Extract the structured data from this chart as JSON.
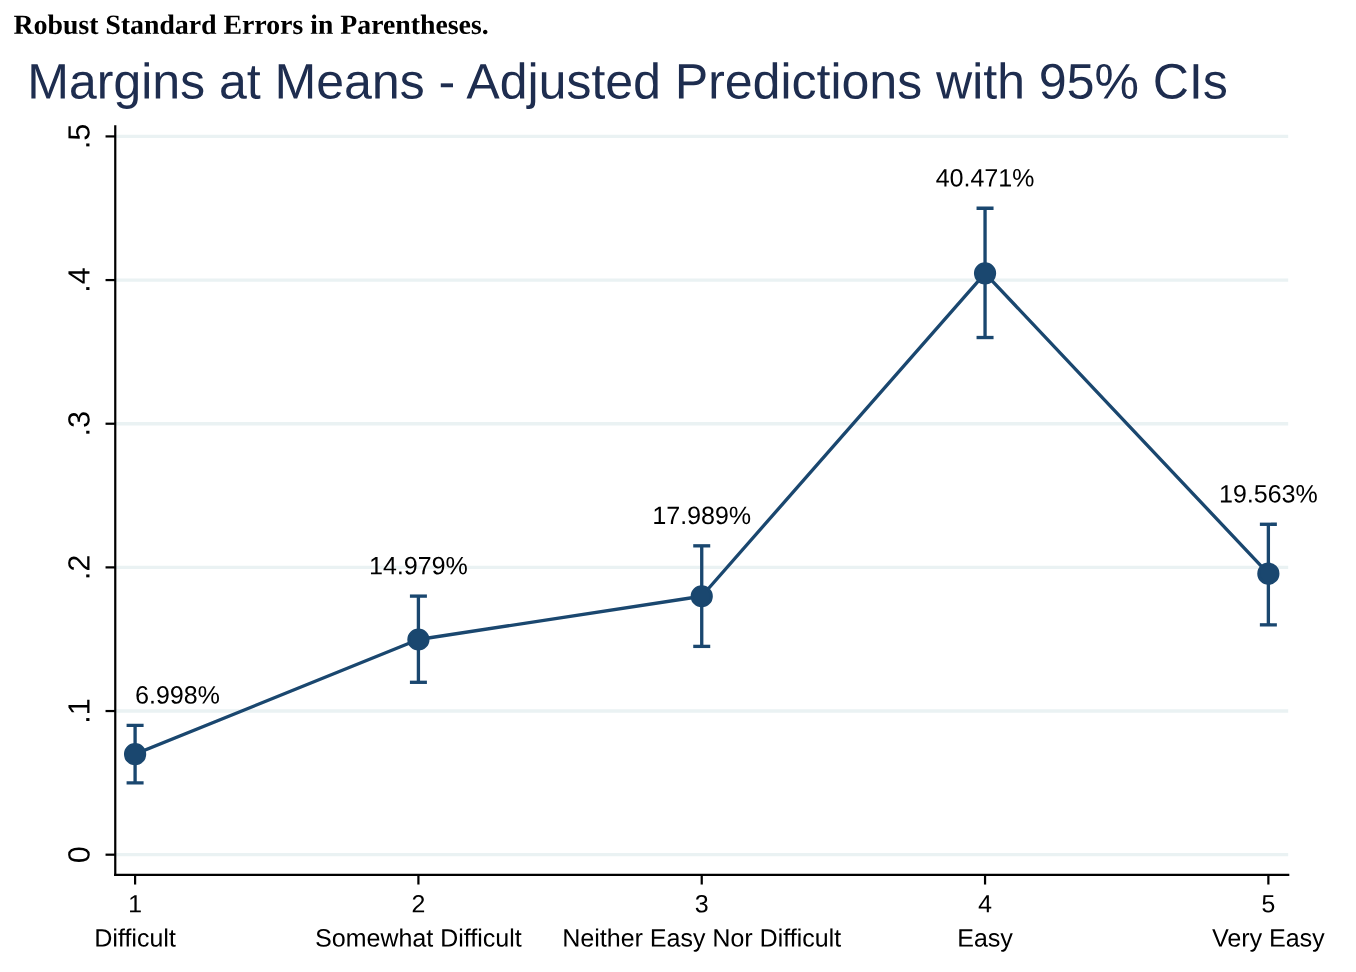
{
  "chart_data": {
    "type": "line",
    "title": "Margins at Means - Adjusted Predictions with 95% CIs",
    "annotations": [
      "Robust Standard Errors in Parentheses."
    ],
    "x": [
      1,
      2,
      3,
      4,
      5
    ],
    "series": [
      {
        "color": "#1a476f",
        "values": [
          0.06998,
          0.14979,
          0.17989,
          0.40471,
          0.19563
        ],
        "errors": [
          [
            0.05,
            0.09
          ],
          [
            0.12,
            0.18
          ],
          [
            0.145,
            0.215
          ],
          [
            0.36,
            0.45
          ],
          [
            0.16,
            0.23
          ]
        ],
        "value_labels": [
          "6.998%",
          "14.979%",
          "17.989%",
          "40.471%",
          "19.563%"
        ]
      }
    ],
    "xlim": [
      0.93,
      5.07
    ],
    "ylim": [
      -0.014,
      0.507
    ],
    "xticks": [
      {
        "value": 1,
        "label": "1\nDifficult"
      },
      {
        "value": 2,
        "label": "2\nSomewhat Difficult"
      },
      {
        "value": 3,
        "label": "3\nNeither Easy Nor Difficult"
      },
      {
        "value": 4,
        "label": "4\nEasy"
      },
      {
        "value": 5,
        "label": "5\nVery Easy"
      }
    ],
    "yticks": [
      {
        "value": 0,
        "label": "0"
      },
      {
        "value": 0.1,
        "label": ".1"
      },
      {
        "value": 0.2,
        "label": ".2"
      },
      {
        "value": 0.3,
        "label": ".3"
      },
      {
        "value": 0.4,
        "label": ".4"
      },
      {
        "value": 0.5,
        "label": ".5"
      }
    ],
    "grid": "y",
    "marker": "circle",
    "line_style": "solid",
    "legend": false
  }
}
